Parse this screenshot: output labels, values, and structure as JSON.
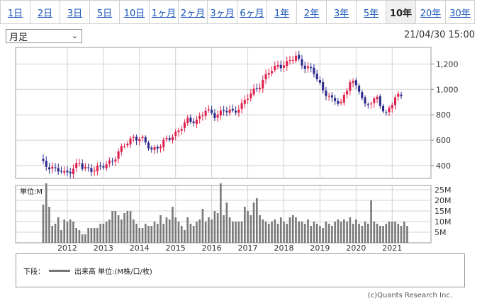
{
  "tabs": [
    "1日",
    "2日",
    "3日",
    "5日",
    "10日",
    "1ヶ月",
    "2ヶ月",
    "3ヶ月",
    "6ヶ月",
    "1年",
    "2年",
    "3年",
    "5年",
    "10年",
    "20年",
    "30年"
  ],
  "active_tab": 13,
  "select": {
    "value": "月足"
  },
  "datetime": "21/04/30 15:00",
  "volume_panel_label": "単位:M",
  "legend": {
    "prefix": "下段：",
    "label": "出来高 単位:(M株/口/枚)"
  },
  "copyright": "(c)Quants Research Inc.",
  "colors": {
    "up": "#e0204c",
    "down": "#2a2a8c",
    "volume": "#7a7a7a",
    "grid": "#d0d0d0"
  },
  "chart_data": [
    {
      "type": "candlestick",
      "title": "",
      "y_ticks": [
        400,
        600,
        800,
        1000,
        1200
      ],
      "y_tick_labels": [
        "400",
        "600",
        "800",
        "1,000",
        "1,200"
      ],
      "ylim": [
        300,
        1330
      ],
      "x_tick_labels": [
        "2012",
        "2013",
        "2014",
        "2015",
        "2016",
        "2017",
        "2018",
        "2019",
        "2020",
        "2021"
      ],
      "x_range": [
        "2011-05",
        "2021-04"
      ],
      "grid": true,
      "anchor_closes": [
        [
          "2011-05",
          420
        ],
        [
          "2011-09",
          370
        ],
        [
          "2011-12",
          340
        ],
        [
          "2012-03",
          380
        ],
        [
          "2012-05",
          420
        ],
        [
          "2012-06",
          380
        ],
        [
          "2012-09",
          375
        ],
        [
          "2012-12",
          380
        ],
        [
          "2013-02",
          410
        ],
        [
          "2013-05",
          470
        ],
        [
          "2013-08",
          560
        ],
        [
          "2013-11",
          630
        ],
        [
          "2014-02",
          600
        ],
        [
          "2014-05",
          530
        ],
        [
          "2014-08",
          560
        ],
        [
          "2014-11",
          620
        ],
        [
          "2015-02",
          680
        ],
        [
          "2015-05",
          750
        ],
        [
          "2015-08",
          760
        ],
        [
          "2015-11",
          830
        ],
        [
          "2016-02",
          800
        ],
        [
          "2016-05",
          830
        ],
        [
          "2016-08",
          820
        ],
        [
          "2016-11",
          880
        ],
        [
          "2017-02",
          960
        ],
        [
          "2017-05",
          1040
        ],
        [
          "2017-08",
          1130
        ],
        [
          "2017-11",
          1190
        ],
        [
          "2018-02",
          1200
        ],
        [
          "2018-05",
          1260
        ],
        [
          "2018-08",
          1180
        ],
        [
          "2018-11",
          1130
        ],
        [
          "2019-02",
          1000
        ],
        [
          "2019-05",
          910
        ],
        [
          "2019-08",
          900
        ],
        [
          "2019-11",
          1060
        ],
        [
          "2020-02",
          1000
        ],
        [
          "2020-04",
          880
        ],
        [
          "2020-08",
          920
        ],
        [
          "2020-11",
          810
        ],
        [
          "2021-02",
          930
        ],
        [
          "2021-04",
          950
        ]
      ]
    },
    {
      "type": "bar",
      "name": "出来高",
      "unit": "M",
      "y_ticks": [
        5,
        10,
        15,
        20,
        25
      ],
      "y_tick_labels": [
        "5M",
        "10M",
        "15M",
        "20M",
        "25M"
      ],
      "ylim": [
        0,
        27
      ],
      "x_range": [
        "2011-05",
        "2021-04"
      ],
      "values": [
        18,
        28,
        17,
        8,
        9,
        12,
        6,
        11,
        10,
        11,
        10,
        7,
        6,
        4,
        4,
        7,
        7,
        7,
        7,
        9,
        9,
        10,
        11,
        15,
        15,
        13,
        11,
        14,
        15,
        15,
        11,
        9,
        7,
        7,
        9,
        8,
        8,
        10,
        9,
        13,
        9,
        12,
        11,
        17,
        12,
        10,
        8,
        6,
        12,
        9,
        8,
        10,
        11,
        16,
        10,
        12,
        11,
        15,
        14,
        28,
        13,
        19,
        12,
        10,
        10,
        10,
        10,
        17,
        15,
        13,
        19,
        21,
        13,
        11,
        10,
        9,
        10,
        11,
        9,
        12,
        10,
        9,
        12,
        13,
        12,
        10,
        10,
        9,
        11,
        8,
        10,
        9,
        8,
        7,
        10,
        9,
        8,
        10,
        11,
        10,
        11,
        10,
        12,
        9,
        11,
        9,
        8,
        10,
        9,
        20,
        10,
        9,
        8,
        8,
        9,
        10,
        10,
        10,
        9,
        8,
        10,
        8
      ]
    }
  ]
}
